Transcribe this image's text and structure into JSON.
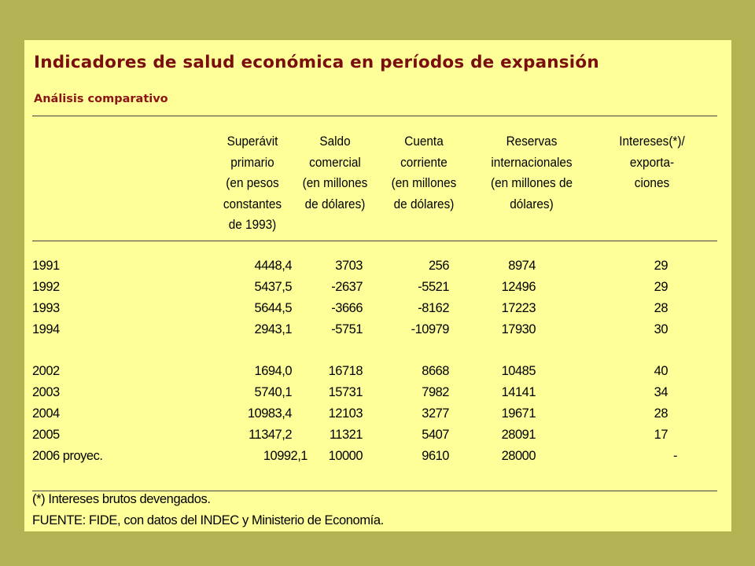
{
  "title": "Indicadores de salud económica en períodos de expansión",
  "subtitle": "Análisis comparativo",
  "columns": [
    [
      "Superávit",
      "primario",
      "(en pesos",
      "constantes",
      "de 1993)"
    ],
    [
      "Saldo",
      "comercial",
      "(en millones",
      "de dólares)"
    ],
    [
      "Cuenta",
      "corriente",
      "(en millones",
      "de dólares)"
    ],
    [
      "Reservas",
      "internacionales",
      "(en millones de",
      "dólares)"
    ],
    [
      "Intereses(*)/",
      "exporta-",
      "ciones"
    ]
  ],
  "group1": [
    {
      "year": "1991",
      "v1": "4448,4",
      "v2": "3703",
      "v3": "256",
      "v4": "8974",
      "v5": "29"
    },
    {
      "year": "1992",
      "v1": "5437,5",
      "v2": "-2637",
      "v3": "-5521",
      "v4": "12496",
      "v5": "29"
    },
    {
      "year": "1993",
      "v1": "5644,5",
      "v2": "-3666",
      "v3": "-8162",
      "v4": "17223",
      "v5": "28"
    },
    {
      "year": "1994",
      "v1": "2943,1",
      "v2": "-5751",
      "v3": "-10979",
      "v4": "17930",
      "v5": "30"
    }
  ],
  "group2": [
    {
      "year": "2002",
      "v1": "1694,0",
      "v2": "16718",
      "v3": "8668",
      "v4": "10485",
      "v5": "40"
    },
    {
      "year": "2003",
      "v1": "5740,1",
      "v2": "15731",
      "v3": "7982",
      "v4": "14141",
      "v5": "34"
    },
    {
      "year": "2004",
      "v1": "10983,4",
      "v2": "12103",
      "v3": "3277",
      "v4": "19671",
      "v5": "28"
    },
    {
      "year": "2005",
      "v1": "11347,2",
      "v2": "11321",
      "v3": "5407",
      "v4": "28091",
      "v5": "17"
    },
    {
      "year": "2006 proyec.",
      "v1": "10992,1",
      "v2": "10000",
      "v3": "9610",
      "v4": "28000",
      "v5": "-"
    }
  ],
  "footnote": "(*) Intereses brutos devengados.",
  "source": "FUENTE: FIDE, con datos del INDEC y Ministerio de Economía."
}
